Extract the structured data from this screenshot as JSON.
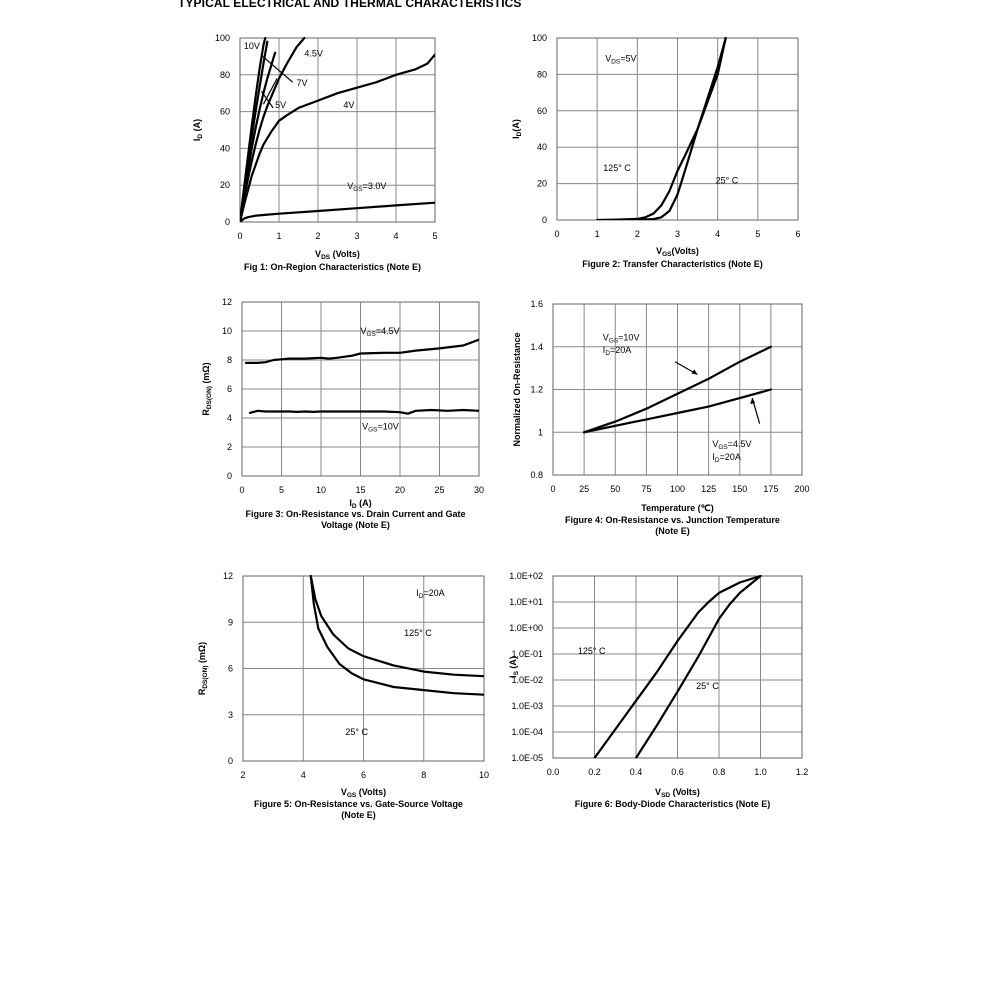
{
  "page_title": "TYPICAL ELECTRICAL AND THERMAL CHARACTERISTICS",
  "chart_data": [
    {
      "id": "fig1",
      "type": "line",
      "caption": "Fig 1: On-Region Characteristics (Note E)",
      "xlabel": {
        "main": "V",
        "sub": "DS",
        "rest": " (Volts)"
      },
      "ylabel": {
        "main": "I",
        "sub": "D",
        "rest": " (A)"
      },
      "xlim": [
        0,
        5
      ],
      "ylim": [
        0,
        100
      ],
      "xticks": [
        "0",
        "1",
        "2",
        "3",
        "4",
        "5"
      ],
      "yticks": [
        "0",
        "20",
        "40",
        "60",
        "80",
        "100"
      ],
      "series": [
        {
          "name": "10V",
          "x": [
            0,
            0.1,
            0.2,
            0.3,
            0.4,
            0.5,
            0.6,
            0.65
          ],
          "y": [
            0,
            18,
            35,
            52,
            68,
            83,
            96,
            100
          ]
        },
        {
          "name": "7V",
          "x": [
            0,
            0.1,
            0.2,
            0.3,
            0.4,
            0.5,
            0.6,
            0.7
          ],
          "y": [
            0,
            16,
            31,
            46,
            60,
            73,
            86,
            98
          ]
        },
        {
          "name": "5V",
          "x": [
            0,
            0.1,
            0.2,
            0.3,
            0.4,
            0.5,
            0.6,
            0.7,
            0.8,
            0.9
          ],
          "y": [
            0,
            14,
            27,
            40,
            51,
            61,
            70,
            78,
            85,
            92
          ]
        },
        {
          "name": "4.5V",
          "x": [
            0,
            0.1,
            0.2,
            0.3,
            0.4,
            0.5,
            0.6,
            0.7,
            0.8,
            0.9,
            1.0,
            1.2,
            1.45,
            1.65
          ],
          "y": [
            0,
            12,
            23,
            33,
            42,
            50,
            57,
            63,
            68,
            73,
            78,
            86,
            95,
            100
          ]
        },
        {
          "name": "4V",
          "x": [
            0,
            0.1,
            0.2,
            0.3,
            0.4,
            0.5,
            0.6,
            0.8,
            1.0,
            1.2,
            1.5,
            2.0,
            2.5,
            3.0,
            3.5,
            4.0,
            4.5,
            4.8,
            5.0
          ],
          "y": [
            0,
            9,
            17,
            25,
            31,
            37,
            42,
            49,
            55,
            58,
            62,
            66,
            70,
            73,
            76,
            80,
            83,
            86,
            91
          ]
        },
        {
          "name": "V_GS=3.0V",
          "x": [
            0,
            0.1,
            0.2,
            0.4,
            0.6,
            1.0,
            2.0,
            3.0,
            4.0,
            5.0
          ],
          "y": [
            0,
            1.8,
            2.6,
            3.4,
            3.8,
            4.5,
            6,
            7.5,
            9,
            10.5
          ]
        }
      ],
      "annotations": [
        {
          "label": "10V",
          "x": 0.1,
          "y": 94
        },
        {
          "label": "4.5V",
          "x": 1.65,
          "y": 90
        },
        {
          "label": "7V",
          "x": 1.45,
          "y": 74
        },
        {
          "label": "5V",
          "x": 0.9,
          "y": 62
        },
        {
          "label": "4V",
          "x": 2.65,
          "y": 62
        },
        {
          "label": "V_GS=3.0V",
          "x": 2.75,
          "y": 18
        }
      ]
    },
    {
      "id": "fig2",
      "type": "line",
      "caption": "Figure 2: Transfer Characteristics (Note E)",
      "xlabel": {
        "main": "V",
        "sub": "GS",
        "rest": "(Volts)"
      },
      "ylabel": {
        "main": "I",
        "sub": "D",
        "rest": "(A)"
      },
      "xlim": [
        0,
        6
      ],
      "ylim": [
        0,
        100
      ],
      "xticks": [
        "0",
        "1",
        "2",
        "3",
        "4",
        "5",
        "6"
      ],
      "yticks": [
        "0",
        "20",
        "40",
        "60",
        "80",
        "100"
      ],
      "series": [
        {
          "name": "125° C",
          "x": [
            1.0,
            1.5,
            2.0,
            2.2,
            2.4,
            2.6,
            2.8,
            3.0,
            3.2,
            3.5,
            4.0,
            4.2
          ],
          "y": [
            0,
            0.2,
            0.6,
            1.5,
            3.5,
            8,
            16,
            27,
            36,
            50,
            80,
            100
          ]
        },
        {
          "name": "25° C",
          "x": [
            1.5,
            2.0,
            2.4,
            2.6,
            2.8,
            3.0,
            3.2,
            3.5,
            4.0,
            4.2
          ],
          "y": [
            0,
            0.1,
            0.5,
            1.5,
            5,
            14,
            28,
            50,
            84,
            100
          ]
        }
      ],
      "annotations": [
        {
          "label": "V_DS=5V",
          "x": 1.2,
          "y": 87
        },
        {
          "label": "125° C",
          "x": 1.15,
          "y": 27
        },
        {
          "label": "25° C",
          "x": 3.95,
          "y": 20
        }
      ]
    },
    {
      "id": "fig3",
      "type": "line",
      "caption": [
        "Figure 3: On-Resistance vs. Drain Current and Gate",
        "Voltage (Note E)"
      ],
      "xlabel": {
        "main": "I",
        "sub": "D",
        "rest": " (A)"
      },
      "ylabel": {
        "main": "R",
        "sub": "DS(ON)",
        "rest": " (mΩ)"
      },
      "xlim": [
        0,
        30
      ],
      "ylim": [
        0,
        12
      ],
      "xticks": [
        "0",
        "5",
        "10",
        "15",
        "20",
        "25",
        "30"
      ],
      "yticks": [
        "0",
        "2",
        "4",
        "6",
        "8",
        "10",
        "12"
      ],
      "series": [
        {
          "name": "V_GS=4.5V",
          "x": [
            0.5,
            1,
            2,
            3,
            4,
            5,
            6,
            8,
            10,
            11,
            12,
            14,
            15,
            18,
            20,
            22,
            25,
            28,
            30
          ],
          "y": [
            7.8,
            7.8,
            7.8,
            7.85,
            8.0,
            8.05,
            8.1,
            8.1,
            8.15,
            8.1,
            8.15,
            8.3,
            8.45,
            8.5,
            8.5,
            8.65,
            8.8,
            9.0,
            9.4
          ]
        },
        {
          "name": "V_GS=10V",
          "x": [
            1,
            2,
            3,
            4,
            5,
            6,
            7,
            8,
            9,
            10,
            12,
            14,
            16,
            18,
            20,
            21,
            22,
            24,
            26,
            28,
            30
          ],
          "y": [
            4.35,
            4.5,
            4.45,
            4.45,
            4.45,
            4.45,
            4.42,
            4.45,
            4.42,
            4.45,
            4.45,
            4.45,
            4.45,
            4.45,
            4.4,
            4.3,
            4.5,
            4.55,
            4.5,
            4.55,
            4.5
          ]
        }
      ],
      "annotations": [
        {
          "label": "V_GS=4.5V",
          "x": 15,
          "y": 9.8
        },
        {
          "label": "V_GS=10V",
          "x": 15.2,
          "y": 3.2
        }
      ]
    },
    {
      "id": "fig4",
      "type": "line",
      "caption": [
        "Figure 4: On-Resistance vs. Junction Temperature",
        "(Note E)"
      ],
      "xlabel": {
        "main": "Temperature (℃)",
        "sub": "",
        "rest": ""
      },
      "ylabel": {
        "main": "Normalized On-Resistance",
        "sub": "",
        "rest": ""
      },
      "xlim": [
        0,
        200
      ],
      "ylim": [
        0.8,
        1.6
      ],
      "xticks": [
        "0",
        "25",
        "50",
        "75",
        "100",
        "125",
        "150",
        "175",
        "200"
      ],
      "yticks": [
        "0.8",
        "1",
        "1.2",
        "1.4",
        "1.6"
      ],
      "series": [
        {
          "name": "V_GS=10V I_D=20A",
          "x": [
            25,
            50,
            75,
            100,
            125,
            150,
            175
          ],
          "y": [
            1.0,
            1.05,
            1.11,
            1.18,
            1.25,
            1.33,
            1.4
          ]
        },
        {
          "name": "V_GS=4.5V I_D=20A",
          "x": [
            25,
            50,
            75,
            100,
            125,
            150,
            175
          ],
          "y": [
            1.0,
            1.03,
            1.06,
            1.09,
            1.12,
            1.16,
            1.2
          ]
        }
      ],
      "annotations": [
        {
          "label": "V_GS=10V",
          "x": 40,
          "y": 1.43
        },
        {
          "label": "I_D=20A",
          "x": 40,
          "y": 1.37
        },
        {
          "label": "V_GS=4.5V",
          "x": 128,
          "y": 0.93
        },
        {
          "label": "I_D=20A",
          "x": 128,
          "y": 0.87
        }
      ]
    },
    {
      "id": "fig5",
      "type": "line",
      "caption": [
        "Figure 5: On-Resistance vs. Gate-Source Voltage",
        "(Note E)"
      ],
      "xlabel": {
        "main": "V",
        "sub": "GS",
        "rest": " (Volts)"
      },
      "ylabel": {
        "main": "R",
        "sub": "DS(ON)",
        "rest": " (mΩ)"
      },
      "xlim": [
        2,
        10
      ],
      "ylim": [
        0,
        12
      ],
      "xticks": [
        "2",
        "4",
        "6",
        "8",
        "10"
      ],
      "yticks": [
        "0",
        "3",
        "6",
        "9",
        "12"
      ],
      "series": [
        {
          "name": "125° C",
          "x": [
            4.25,
            4.4,
            4.6,
            5.0,
            5.5,
            6,
            7,
            8,
            9,
            10
          ],
          "y": [
            12,
            10.5,
            9.4,
            8.2,
            7.3,
            6.8,
            6.2,
            5.8,
            5.6,
            5.5
          ]
        },
        {
          "name": "25° C",
          "x": [
            4.25,
            4.35,
            4.5,
            4.8,
            5.2,
            5.6,
            6,
            7,
            8,
            9,
            10
          ],
          "y": [
            12,
            10.2,
            8.6,
            7.4,
            6.3,
            5.7,
            5.3,
            4.8,
            4.6,
            4.4,
            4.3
          ]
        }
      ],
      "annotations": [
        {
          "label": "I_D=20A",
          "x": 7.75,
          "y": 10.7
        },
        {
          "label": "125° C",
          "x": 7.35,
          "y": 8.1
        },
        {
          "label": "25° C",
          "x": 5.4,
          "y": 1.7
        }
      ]
    },
    {
      "id": "fig6",
      "type": "line",
      "caption": "Figure 6: Body-Diode Characteristics (Note E)",
      "xlabel": {
        "main": "V",
        "sub": "SD",
        "rest": " (Volts)"
      },
      "ylabel": {
        "main": "I",
        "sub": "S",
        "rest": " (A)"
      },
      "xlim": [
        0,
        1.2
      ],
      "ylim": [
        -5,
        2
      ],
      "yscale": "log10",
      "xticks": [
        "0.0",
        "0.2",
        "0.4",
        "0.6",
        "0.8",
        "1.0",
        "1.2"
      ],
      "yticks": [
        "1.0E-05",
        "1.0E-04",
        "1.0E-03",
        "1.0E-02",
        "1.0E-01",
        "1.0E+00",
        "1.0E+01",
        "1.0E+02"
      ],
      "series": [
        {
          "name": "125° C",
          "x": [
            0.2,
            0.3,
            0.4,
            0.5,
            0.6,
            0.7,
            0.75,
            0.8,
            0.9,
            1.0
          ],
          "y": [
            -5,
            -3.9,
            -2.8,
            -1.7,
            -0.5,
            0.6,
            1.0,
            1.35,
            1.75,
            2.0
          ]
        },
        {
          "name": "25° C",
          "x": [
            0.4,
            0.5,
            0.6,
            0.7,
            0.8,
            0.85,
            0.9,
            1.0
          ],
          "y": [
            -5,
            -3.75,
            -2.45,
            -1.1,
            0.35,
            0.9,
            1.35,
            2.0
          ]
        }
      ],
      "annotations": [
        {
          "label": "125° C",
          "x": 0.12,
          "y": -1.0
        },
        {
          "label": "25° C",
          "x": 0.69,
          "y": -2.35
        }
      ]
    }
  ]
}
